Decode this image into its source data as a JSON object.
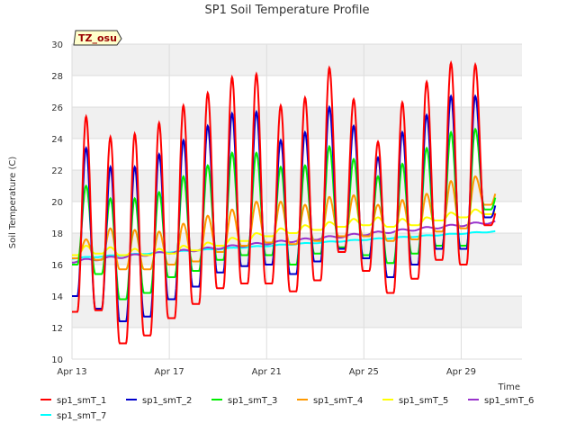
{
  "chart_data": {
    "type": "line",
    "title": "SP1 Soil Temperature Profile",
    "xlabel": "Time",
    "ylabel": "Soil Temperature (C)",
    "ylim": [
      10,
      30
    ],
    "xlim": [
      0,
      18.5
    ],
    "yticks": [
      10,
      12,
      14,
      16,
      18,
      20,
      22,
      24,
      26,
      28,
      30
    ],
    "xticks": [
      {
        "x": 0,
        "label": "Apr 13"
      },
      {
        "x": 4,
        "label": "Apr 17"
      },
      {
        "x": 8,
        "label": "Apr 21"
      },
      {
        "x": 12,
        "label": "Apr 25"
      },
      {
        "x": 16,
        "label": "Apr 29"
      }
    ],
    "tag": "TZ_osu",
    "legend_position": "bottom",
    "days": [
      0,
      1,
      2,
      3,
      4,
      5,
      6,
      7,
      8,
      9,
      10,
      11,
      12,
      13,
      14,
      15,
      16,
      17
    ],
    "series": [
      {
        "name": "sp1_smT_1",
        "color": "#ff0000",
        "min": [
          13.0,
          13.1,
          11.0,
          11.5,
          12.6,
          13.5,
          14.5,
          14.8,
          14.8,
          14.3,
          15.0,
          16.8,
          15.6,
          14.2,
          15.1,
          16.3,
          16.0,
          18.5
        ],
        "max": [
          25.4,
          24.1,
          24.3,
          25.0,
          26.1,
          26.9,
          27.9,
          28.1,
          26.1,
          26.6,
          28.5,
          26.5,
          23.8,
          26.3,
          27.6,
          28.8,
          28.7,
          20.0
        ]
      },
      {
        "name": "sp1_smT_2",
        "color": "#0000cc",
        "min": [
          14.0,
          13.2,
          12.4,
          12.7,
          13.8,
          14.6,
          15.5,
          15.9,
          16.0,
          15.4,
          16.2,
          17.0,
          16.4,
          15.2,
          16.0,
          17.0,
          17.0,
          19.0
        ],
        "max": [
          23.4,
          22.2,
          22.2,
          23.0,
          23.9,
          24.8,
          25.6,
          25.7,
          23.9,
          24.4,
          26.0,
          24.8,
          22.8,
          24.4,
          25.5,
          26.7,
          26.7,
          20.5
        ]
      },
      {
        "name": "sp1_smT_3",
        "color": "#00ee00",
        "min": [
          16.0,
          15.4,
          13.8,
          14.2,
          15.2,
          15.6,
          16.3,
          16.6,
          16.6,
          16.0,
          16.7,
          17.1,
          16.6,
          16.1,
          16.7,
          17.2,
          17.2,
          19.5
        ],
        "max": [
          21.0,
          20.2,
          20.2,
          20.6,
          21.6,
          22.3,
          23.1,
          23.1,
          22.2,
          22.3,
          23.5,
          22.7,
          21.6,
          22.4,
          23.4,
          24.4,
          24.6,
          21.0
        ]
      },
      {
        "name": "sp1_smT_4",
        "color": "#ff9900",
        "min": [
          16.4,
          16.3,
          15.7,
          15.7,
          16.0,
          16.2,
          16.8,
          17.2,
          17.4,
          17.3,
          17.5,
          17.8,
          17.8,
          17.5,
          17.6,
          18.1,
          18.3,
          19.8
        ],
        "max": [
          17.6,
          18.3,
          18.2,
          18.1,
          18.6,
          19.1,
          19.5,
          20.0,
          20.0,
          19.8,
          20.3,
          20.4,
          19.8,
          20.1,
          20.5,
          21.3,
          21.6,
          21.2
        ]
      },
      {
        "name": "sp1_smT_5",
        "color": "#ffff00",
        "min": [
          16.6,
          16.7,
          16.6,
          16.6,
          16.7,
          16.9,
          17.2,
          17.5,
          17.8,
          18.0,
          18.2,
          18.4,
          18.5,
          18.4,
          18.5,
          18.8,
          19.0,
          19.2
        ],
        "max": [
          17.2,
          17.1,
          17.0,
          17.0,
          17.2,
          17.4,
          17.7,
          18.0,
          18.3,
          18.5,
          18.7,
          18.9,
          19.0,
          18.9,
          19.0,
          19.3,
          19.5,
          19.5
        ]
      },
      {
        "name": "sp1_smT_6",
        "color": "#9933cc",
        "start": 16.2,
        "end": 18.7,
        "amp": 0.08
      },
      {
        "name": "sp1_smT_7",
        "color": "#00ffff",
        "start": 16.4,
        "end": 18.1,
        "amp": 0.03
      }
    ]
  }
}
